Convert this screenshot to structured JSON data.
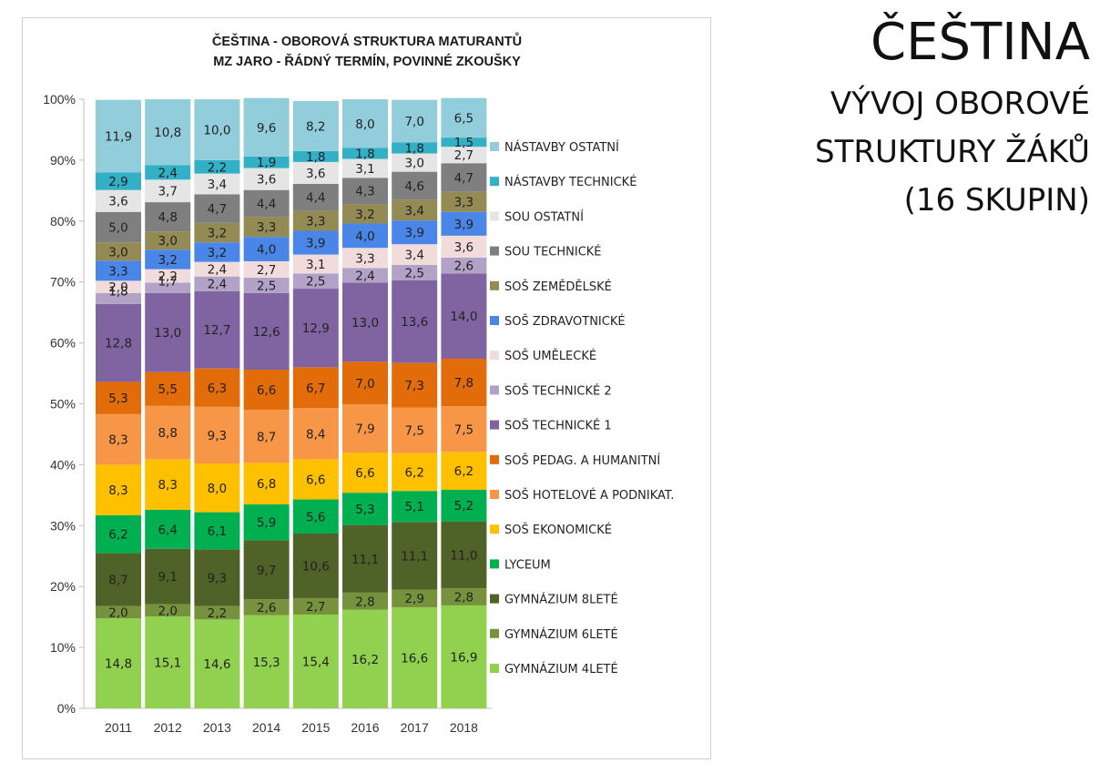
{
  "side": {
    "title": "ČEŠTINA",
    "subtitle_lines": [
      "VÝVOJ OBOROVÉ",
      "STRUKTURY ŽÁKŮ",
      "(16 SKUPIN)"
    ]
  },
  "chart_data": {
    "type": "bar",
    "stacked": true,
    "percent": true,
    "title": "ČEŠTINA - OBOROVÁ STRUKTURA MATURANTŮ",
    "subtitle": "MZ JARO - ŘÁDNÝ TERMÍN, POVINNÉ ZKOUŠKY",
    "categories": [
      "2011",
      "2012",
      "2013",
      "2014",
      "2015",
      "2016",
      "2017",
      "2018"
    ],
    "y_ticks": [
      "0%",
      "10%",
      "20%",
      "30%",
      "40%",
      "50%",
      "60%",
      "70%",
      "80%",
      "90%",
      "100%"
    ],
    "ylim": [
      0,
      100
    ],
    "grid": false,
    "legend_position": "right",
    "series": [
      {
        "name": "GYMNÁZIUM 4LETÉ",
        "color": "#92d050",
        "values": [
          "14,8",
          "15,1",
          "14,6",
          "15,3",
          "15,4",
          "16,2",
          "16,6",
          "16,9"
        ]
      },
      {
        "name": "GYMNÁZIUM 6LETÉ",
        "color": "#76923c",
        "values": [
          "2,0",
          "2,0",
          "2,2",
          "2,6",
          "2,7",
          "2,8",
          "2,9",
          "2,8"
        ]
      },
      {
        "name": "GYMNÁZIUM 8LETÉ",
        "color": "#4f6228",
        "values": [
          "8,7",
          "9,1",
          "9,3",
          "9,7",
          "10,6",
          "11,1",
          "11,1",
          "11,0"
        ]
      },
      {
        "name": "LYCEUM",
        "color": "#00b050",
        "values": [
          "6,2",
          "6,4",
          "6,1",
          "5,9",
          "5,6",
          "5,3",
          "5,1",
          "5,2"
        ]
      },
      {
        "name": "SOŠ EKONOMICKÉ",
        "color": "#ffc000",
        "values": [
          "8,3",
          "8,3",
          "8,0",
          "6,8",
          "6,6",
          "6,6",
          "6,2",
          "6,2"
        ]
      },
      {
        "name": "SOŠ HOTELOVÉ A PODNIKAT.",
        "color": "#f79646",
        "values": [
          "8,3",
          "8,8",
          "9,3",
          "8,7",
          "8,4",
          "7,9",
          "7,5",
          "7,5"
        ]
      },
      {
        "name": "SOŠ PEDAG. A HUMANITNÍ",
        "color": "#e26b0a",
        "values": [
          "5,3",
          "5,5",
          "6,3",
          "6,6",
          "6,7",
          "7,0",
          "7,3",
          "7,8"
        ]
      },
      {
        "name": "SOŠ TECHNICKÉ 1",
        "color": "#8064a2",
        "values": [
          "12,8",
          "13,0",
          "12,7",
          "12,6",
          "12,9",
          "13,0",
          "13,6",
          "14,0"
        ]
      },
      {
        "name": "SOŠ TECHNICKÉ 2",
        "color": "#b3a2c7",
        "values": [
          "1,8",
          "1,7",
          "2,4",
          "2,5",
          "2,5",
          "2,4",
          "2,5",
          "2,6"
        ]
      },
      {
        "name": "SOŠ UMĚLECKÉ",
        "color": "#f2dcdb",
        "values": [
          "2,0",
          "2,2",
          "2,4",
          "2,7",
          "3,1",
          "3,3",
          "3,4",
          "3,6"
        ]
      },
      {
        "name": "SOŠ ZDRAVOTNICKÉ",
        "color": "#4a86e8",
        "values": [
          "3,3",
          "3,2",
          "3,2",
          "4,0",
          "3,9",
          "4,0",
          "3,9",
          "3,9"
        ]
      },
      {
        "name": "SOŠ ZEMĚDĚLSKÉ",
        "color": "#948a54",
        "values": [
          "3,0",
          "3,0",
          "3,2",
          "3,3",
          "3,3",
          "3,2",
          "3,4",
          "3,3"
        ]
      },
      {
        "name": "SOU TECHNICKÉ",
        "color": "#7f7f7f",
        "values": [
          "5,0",
          "4,8",
          "4,7",
          "4,4",
          "4,4",
          "4,3",
          "4,6",
          "4,7"
        ]
      },
      {
        "name": "SOU OSTATNÍ",
        "color": "#e5e5e5",
        "values": [
          "3,6",
          "3,7",
          "3,4",
          "3,6",
          "3,6",
          "3,1",
          "3,0",
          "2,7"
        ]
      },
      {
        "name": "NÁSTAVBY TECHNICKÉ",
        "color": "#31b0c6",
        "values": [
          "2,9",
          "2,4",
          "2,2",
          "1,9",
          "1,8",
          "1,8",
          "1,8",
          "1,5"
        ]
      },
      {
        "name": "NÁSTAVBY OSTATNÍ",
        "color": "#92cddc",
        "values": [
          "11,9",
          "10,8",
          "10,0",
          "9,6",
          "8,2",
          "8,0",
          "7,0",
          "6,5"
        ]
      }
    ]
  }
}
